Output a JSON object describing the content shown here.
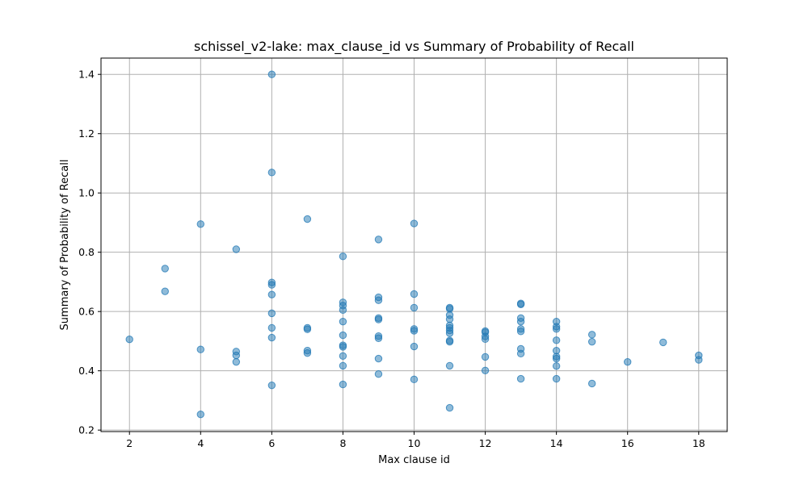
{
  "chart_data": {
    "type": "scatter",
    "title": "schissel_v2-lake: max_clause_id vs Summary of Probability of Recall",
    "xlabel": "Max clause id",
    "ylabel": "Summary of Probability of Recall",
    "xlim": [
      1.2,
      18.8
    ],
    "ylim": [
      0.195,
      1.455
    ],
    "xticks": [
      2,
      4,
      6,
      8,
      10,
      12,
      14,
      16,
      18
    ],
    "yticks": [
      0.2,
      0.4,
      0.6,
      0.8,
      1.0,
      1.2,
      1.4
    ],
    "ytick_labels": [
      "0.2",
      "0.4",
      "0.6",
      "0.8",
      "1.0",
      "1.2",
      "1.4"
    ],
    "grid": true,
    "color": "#1f77b4",
    "points": [
      [
        2,
        0.506
      ],
      [
        3,
        0.745
      ],
      [
        3,
        0.668
      ],
      [
        4,
        0.895
      ],
      [
        4,
        0.472
      ],
      [
        4,
        0.253
      ],
      [
        5,
        0.81
      ],
      [
        5,
        0.465
      ],
      [
        5,
        0.452
      ],
      [
        5,
        0.43
      ],
      [
        6,
        1.4
      ],
      [
        6,
        1.069
      ],
      [
        6,
        0.698
      ],
      [
        6,
        0.69
      ],
      [
        6,
        0.657
      ],
      [
        6,
        0.594
      ],
      [
        6,
        0.545
      ],
      [
        6,
        0.512
      ],
      [
        6,
        0.351
      ],
      [
        7,
        0.912
      ],
      [
        7,
        0.545
      ],
      [
        7,
        0.54
      ],
      [
        7,
        0.468
      ],
      [
        7,
        0.46
      ],
      [
        8,
        0.786
      ],
      [
        8,
        0.631
      ],
      [
        8,
        0.62
      ],
      [
        8,
        0.605
      ],
      [
        8,
        0.566
      ],
      [
        8,
        0.52
      ],
      [
        8,
        0.486
      ],
      [
        8,
        0.481
      ],
      [
        8,
        0.45
      ],
      [
        8,
        0.417
      ],
      [
        8,
        0.354
      ],
      [
        9,
        0.843
      ],
      [
        9,
        0.648
      ],
      [
        9,
        0.638
      ],
      [
        9,
        0.578
      ],
      [
        9,
        0.573
      ],
      [
        9,
        0.517
      ],
      [
        9,
        0.51
      ],
      [
        9,
        0.441
      ],
      [
        9,
        0.389
      ],
      [
        10,
        0.897
      ],
      [
        10,
        0.659
      ],
      [
        10,
        0.613
      ],
      [
        10,
        0.541
      ],
      [
        10,
        0.535
      ],
      [
        10,
        0.482
      ],
      [
        10,
        0.371
      ],
      [
        11,
        0.613
      ],
      [
        11,
        0.609
      ],
      [
        11,
        0.588
      ],
      [
        11,
        0.574
      ],
      [
        11,
        0.553
      ],
      [
        11,
        0.545
      ],
      [
        11,
        0.536
      ],
      [
        11,
        0.527
      ],
      [
        11,
        0.502
      ],
      [
        11,
        0.498
      ],
      [
        11,
        0.417
      ],
      [
        11,
        0.275
      ],
      [
        12,
        0.534
      ],
      [
        12,
        0.53
      ],
      [
        12,
        0.516
      ],
      [
        12,
        0.507
      ],
      [
        12,
        0.447
      ],
      [
        12,
        0.401
      ],
      [
        13,
        0.627
      ],
      [
        13,
        0.624
      ],
      [
        13,
        0.578
      ],
      [
        13,
        0.566
      ],
      [
        13,
        0.541
      ],
      [
        13,
        0.533
      ],
      [
        13,
        0.474
      ],
      [
        13,
        0.458
      ],
      [
        13,
        0.373
      ],
      [
        14,
        0.566
      ],
      [
        14,
        0.549
      ],
      [
        14,
        0.541
      ],
      [
        14,
        0.503
      ],
      [
        14,
        0.468
      ],
      [
        14,
        0.448
      ],
      [
        14,
        0.441
      ],
      [
        14,
        0.416
      ],
      [
        14,
        0.373
      ],
      [
        15,
        0.522
      ],
      [
        15,
        0.498
      ],
      [
        15,
        0.357
      ],
      [
        16,
        0.43
      ],
      [
        17,
        0.496
      ],
      [
        18,
        0.452
      ],
      [
        18,
        0.437
      ]
    ]
  }
}
